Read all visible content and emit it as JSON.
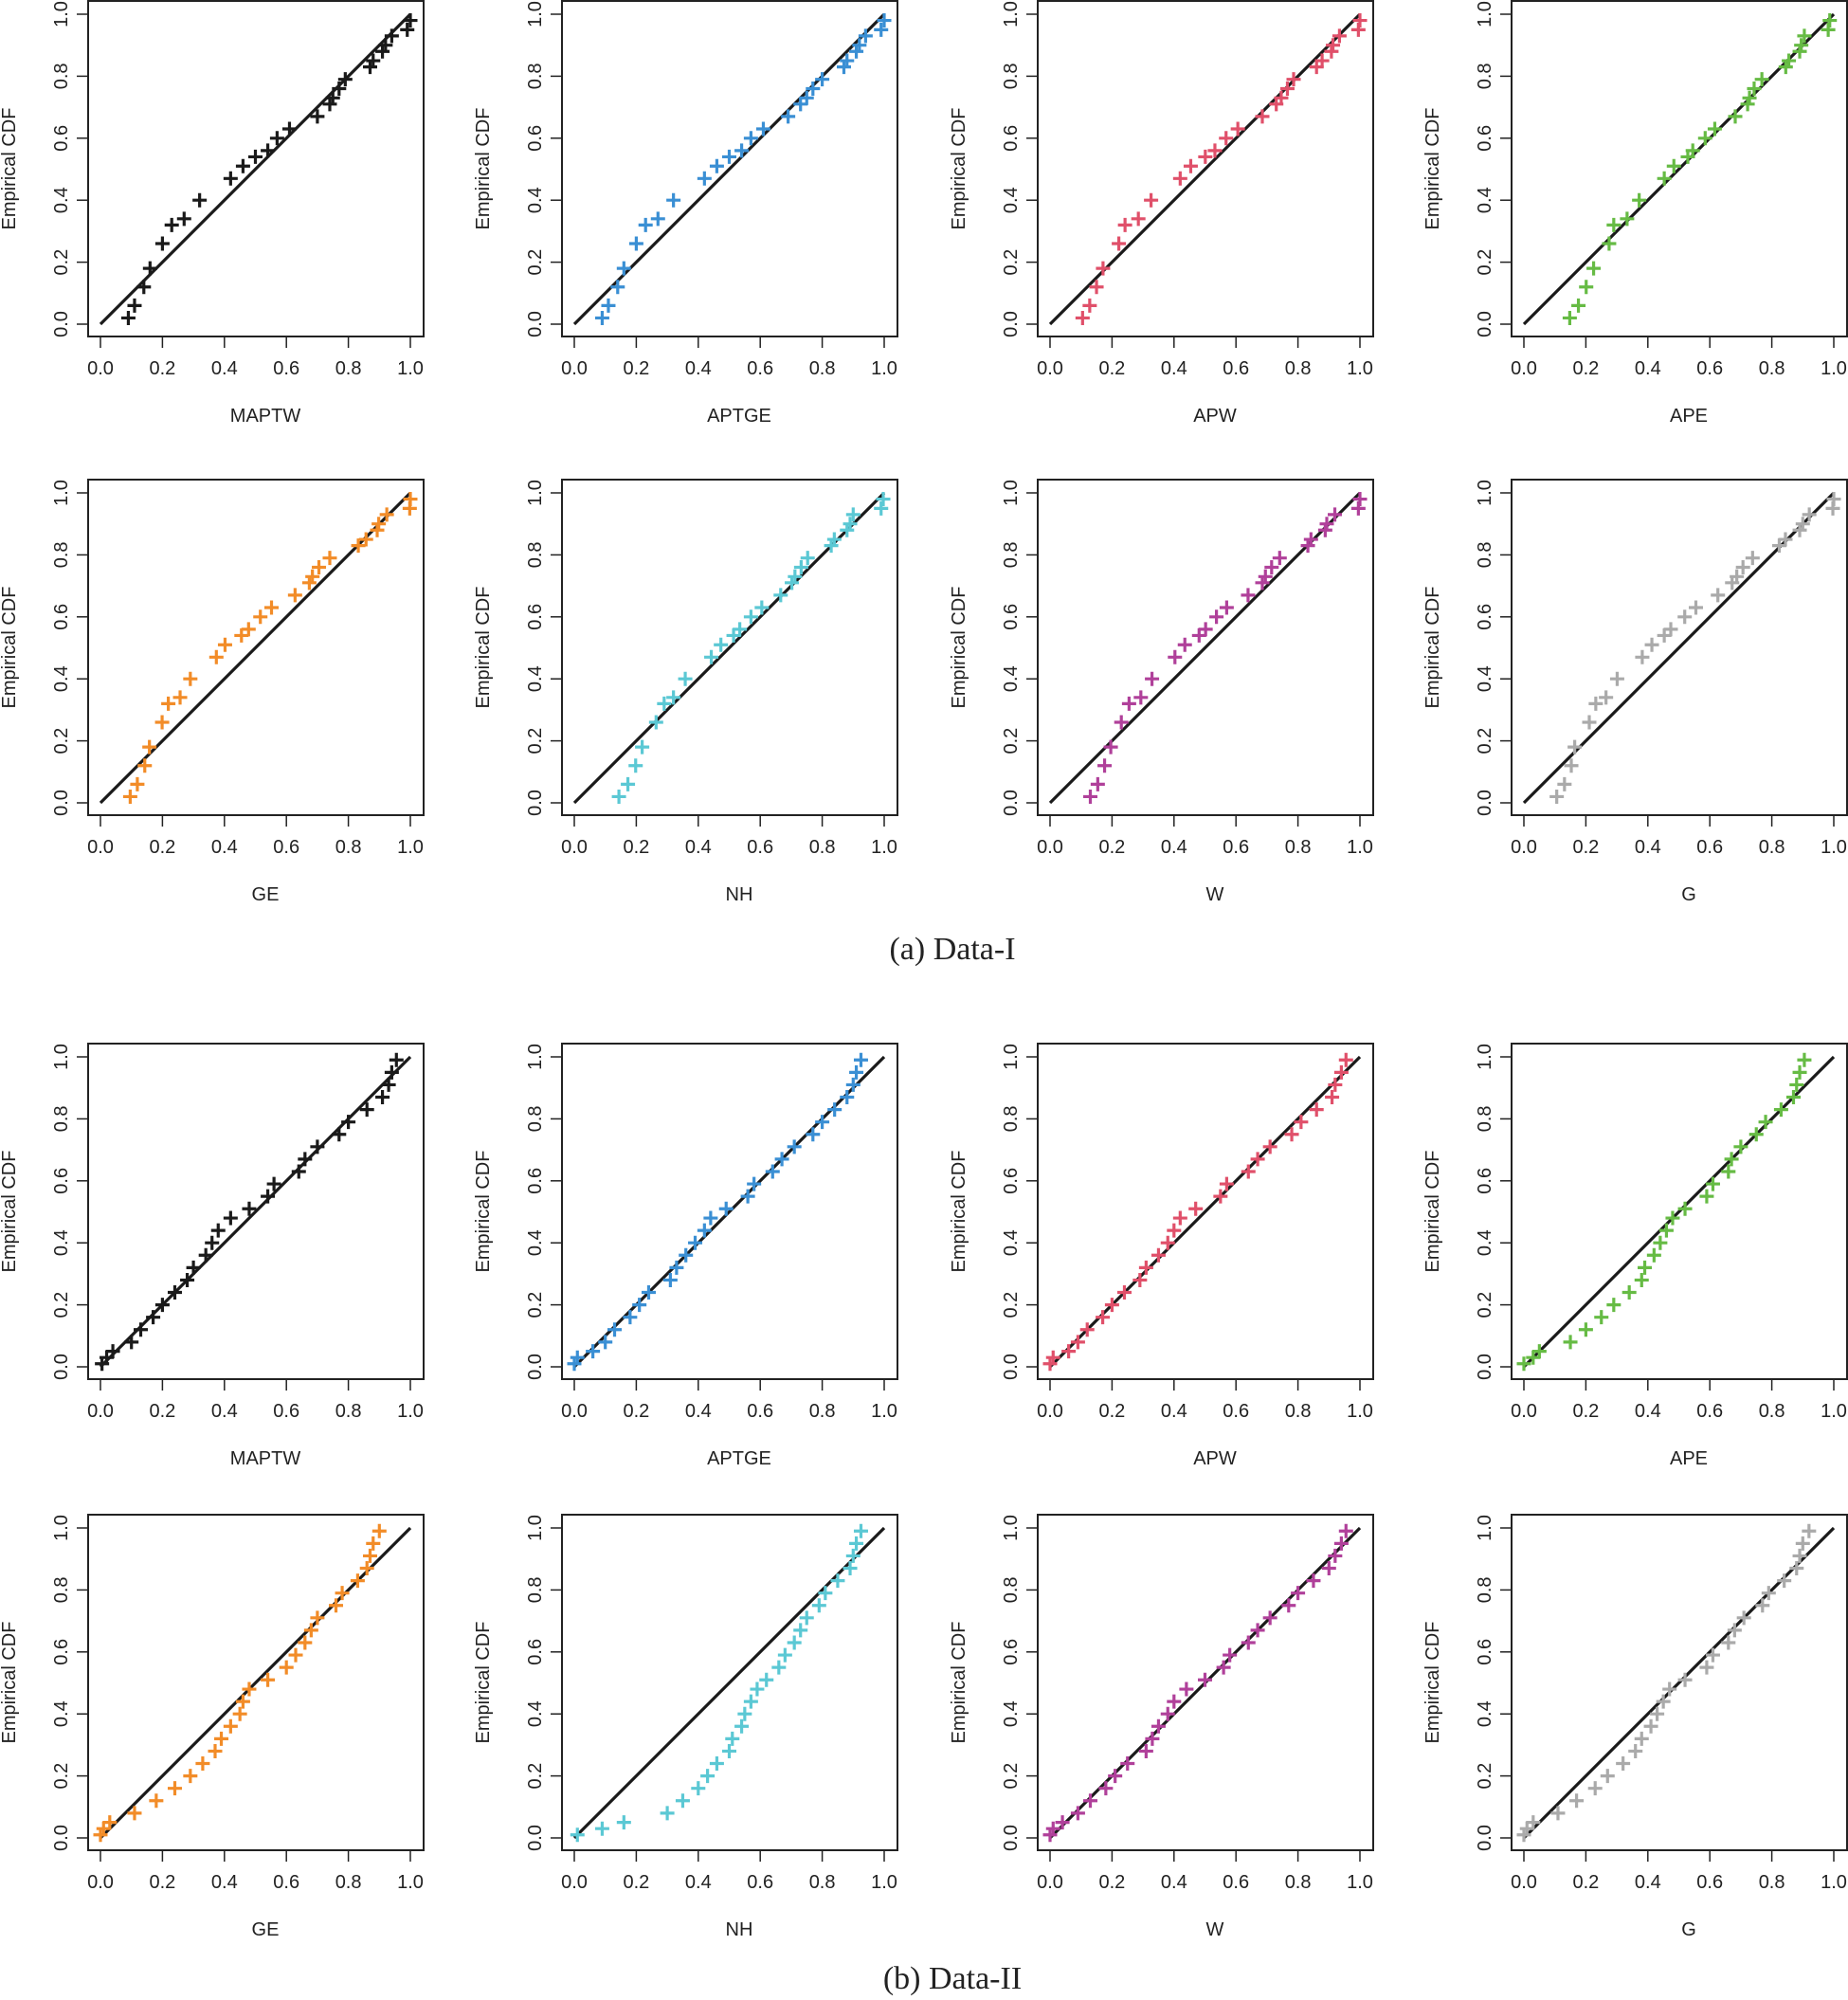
{
  "captions": [
    "(a) Data-I",
    "(b) Data-II"
  ],
  "chart_data": [
    {
      "group": "(a) Data-I",
      "type": "scatter",
      "marker": "plus",
      "xlabel": "MAPTW",
      "ylabel": "Empirical CDF",
      "xlim": [
        0,
        1
      ],
      "ylim": [
        0,
        1
      ],
      "ticks": [
        "0.0",
        "0.2",
        "0.4",
        "0.6",
        "0.8",
        "1.0"
      ],
      "diagonal_reference_line": true,
      "color": "#1a1a1a",
      "x": [
        0.09,
        0.11,
        0.14,
        0.16,
        0.2,
        0.23,
        0.27,
        0.32,
        0.42,
        0.46,
        0.5,
        0.54,
        0.57,
        0.61,
        0.7,
        0.74,
        0.75,
        0.77,
        0.79,
        0.87,
        0.88,
        0.91,
        0.92,
        0.94,
        0.99,
        1.0
      ],
      "y": [
        0.02,
        0.06,
        0.12,
        0.18,
        0.26,
        0.32,
        0.34,
        0.4,
        0.47,
        0.51,
        0.54,
        0.56,
        0.6,
        0.63,
        0.67,
        0.71,
        0.73,
        0.76,
        0.79,
        0.83,
        0.85,
        0.88,
        0.9,
        0.93,
        0.95,
        0.98
      ]
    },
    {
      "group": "(a) Data-I",
      "type": "scatter",
      "marker": "plus",
      "xlabel": "APTGE",
      "ylabel": "Empirical CDF",
      "xlim": [
        0,
        1
      ],
      "ylim": [
        0,
        1
      ],
      "ticks": [
        "0.0",
        "0.2",
        "0.4",
        "0.6",
        "0.8",
        "1.0"
      ],
      "diagonal_reference_line": true,
      "color": "#3a8fd4",
      "x": [
        0.09,
        0.11,
        0.14,
        0.16,
        0.2,
        0.23,
        0.27,
        0.32,
        0.42,
        0.46,
        0.5,
        0.54,
        0.57,
        0.61,
        0.69,
        0.73,
        0.75,
        0.77,
        0.8,
        0.87,
        0.88,
        0.91,
        0.92,
        0.94,
        0.99,
        1.0
      ],
      "y": [
        0.02,
        0.06,
        0.12,
        0.18,
        0.26,
        0.32,
        0.34,
        0.4,
        0.47,
        0.51,
        0.54,
        0.56,
        0.6,
        0.63,
        0.67,
        0.71,
        0.73,
        0.76,
        0.79,
        0.83,
        0.85,
        0.88,
        0.9,
        0.93,
        0.95,
        0.98
      ]
    },
    {
      "group": "(a) Data-I",
      "type": "scatter",
      "marker": "plus",
      "xlabel": "APW",
      "ylabel": "Empirical CDF",
      "xlim": [
        0,
        1
      ],
      "ylim": [
        0,
        1
      ],
      "ticks": [
        "0.0",
        "0.2",
        "0.4",
        "0.6",
        "0.8",
        "1.0"
      ],
      "diagonal_reference_line": true,
      "color": "#e0506a",
      "x": [
        0.105,
        0.128,
        0.15,
        0.171,
        0.222,
        0.242,
        0.285,
        0.326,
        0.42,
        0.454,
        0.501,
        0.532,
        0.568,
        0.606,
        0.685,
        0.73,
        0.746,
        0.766,
        0.786,
        0.86,
        0.878,
        0.908,
        0.913,
        0.934,
        0.995,
        1.0
      ],
      "y": [
        0.02,
        0.06,
        0.12,
        0.18,
        0.26,
        0.32,
        0.34,
        0.4,
        0.47,
        0.51,
        0.54,
        0.56,
        0.6,
        0.63,
        0.67,
        0.71,
        0.73,
        0.76,
        0.79,
        0.83,
        0.85,
        0.88,
        0.9,
        0.93,
        0.95,
        0.98
      ]
    },
    {
      "group": "(a) Data-I",
      "type": "scatter",
      "marker": "plus",
      "xlabel": "APE",
      "ylabel": "Empirical CDF",
      "xlim": [
        0,
        1
      ],
      "ylim": [
        0,
        1
      ],
      "ticks": [
        "0.0",
        "0.2",
        "0.4",
        "0.6",
        "0.8",
        "1.0"
      ],
      "diagonal_reference_line": true,
      "color": "#66bb44",
      "x": [
        0.148,
        0.176,
        0.201,
        0.225,
        0.275,
        0.29,
        0.333,
        0.372,
        0.453,
        0.484,
        0.529,
        0.545,
        0.585,
        0.616,
        0.682,
        0.722,
        0.728,
        0.743,
        0.768,
        0.845,
        0.855,
        0.89,
        0.895,
        0.905,
        0.982,
        0.987
      ],
      "y": [
        0.02,
        0.06,
        0.12,
        0.18,
        0.26,
        0.32,
        0.34,
        0.4,
        0.47,
        0.51,
        0.54,
        0.56,
        0.6,
        0.63,
        0.67,
        0.71,
        0.73,
        0.76,
        0.79,
        0.83,
        0.85,
        0.88,
        0.9,
        0.93,
        0.95,
        0.98
      ]
    },
    {
      "group": "(a) Data-I",
      "type": "scatter",
      "marker": "plus",
      "xlabel": "GE",
      "ylabel": "Empirical CDF",
      "xlim": [
        0,
        1
      ],
      "ylim": [
        0,
        1
      ],
      "ticks": [
        "0.0",
        "0.2",
        "0.4",
        "0.6",
        "0.8",
        "1.0"
      ],
      "diagonal_reference_line": true,
      "color": "#f28c28",
      "x": [
        0.096,
        0.119,
        0.143,
        0.158,
        0.199,
        0.219,
        0.257,
        0.29,
        0.374,
        0.402,
        0.455,
        0.478,
        0.516,
        0.552,
        0.628,
        0.674,
        0.684,
        0.705,
        0.74,
        0.832,
        0.857,
        0.893,
        0.898,
        0.924,
        0.998,
        1.0
      ],
      "y": [
        0.02,
        0.06,
        0.12,
        0.18,
        0.26,
        0.32,
        0.34,
        0.4,
        0.47,
        0.51,
        0.54,
        0.56,
        0.6,
        0.63,
        0.67,
        0.71,
        0.73,
        0.76,
        0.79,
        0.83,
        0.85,
        0.88,
        0.9,
        0.93,
        0.95,
        0.98
      ]
    },
    {
      "group": "(a) Data-I",
      "type": "scatter",
      "marker": "plus",
      "xlabel": "NH",
      "ylabel": "Empirical CDF",
      "xlim": [
        0,
        1
      ],
      "ylim": [
        0,
        1
      ],
      "ticks": [
        "0.0",
        "0.2",
        "0.4",
        "0.6",
        "0.8",
        "1.0"
      ],
      "diagonal_reference_line": true,
      "color": "#5bc8d4",
      "x": [
        0.144,
        0.173,
        0.198,
        0.219,
        0.264,
        0.29,
        0.32,
        0.358,
        0.442,
        0.473,
        0.514,
        0.534,
        0.57,
        0.605,
        0.666,
        0.702,
        0.712,
        0.732,
        0.753,
        0.829,
        0.839,
        0.88,
        0.89,
        0.9,
        0.99,
        0.997
      ],
      "y": [
        0.02,
        0.06,
        0.12,
        0.18,
        0.26,
        0.32,
        0.34,
        0.4,
        0.47,
        0.51,
        0.54,
        0.56,
        0.6,
        0.63,
        0.67,
        0.71,
        0.73,
        0.76,
        0.79,
        0.83,
        0.85,
        0.88,
        0.9,
        0.93,
        0.95,
        0.98
      ]
    },
    {
      "group": "(a) Data-I",
      "type": "scatter",
      "marker": "plus",
      "xlabel": "W",
      "ylabel": "Empirical CDF",
      "xlim": [
        0,
        1
      ],
      "ylim": [
        0,
        1
      ],
      "ticks": [
        "0.0",
        "0.2",
        "0.4",
        "0.6",
        "0.8",
        "1.0"
      ],
      "diagonal_reference_line": true,
      "color": "#b0409a",
      "x": [
        0.13,
        0.154,
        0.176,
        0.196,
        0.23,
        0.255,
        0.293,
        0.329,
        0.403,
        0.435,
        0.481,
        0.502,
        0.537,
        0.57,
        0.639,
        0.685,
        0.695,
        0.715,
        0.741,
        0.832,
        0.842,
        0.888,
        0.893,
        0.919,
        0.995,
        1.0
      ],
      "y": [
        0.02,
        0.06,
        0.12,
        0.18,
        0.26,
        0.32,
        0.34,
        0.4,
        0.47,
        0.51,
        0.54,
        0.56,
        0.6,
        0.63,
        0.67,
        0.71,
        0.73,
        0.76,
        0.79,
        0.83,
        0.85,
        0.88,
        0.9,
        0.93,
        0.95,
        0.98
      ]
    },
    {
      "group": "(a) Data-I",
      "type": "scatter",
      "marker": "plus",
      "xlabel": "G",
      "ylabel": "Empirical CDF",
      "xlim": [
        0,
        1
      ],
      "ylim": [
        0,
        1
      ],
      "ticks": [
        "0.0",
        "0.2",
        "0.4",
        "0.6",
        "0.8",
        "1.0"
      ],
      "diagonal_reference_line": true,
      "color": "#aaaaaa",
      "x": [
        0.106,
        0.131,
        0.153,
        0.164,
        0.211,
        0.232,
        0.265,
        0.301,
        0.382,
        0.413,
        0.453,
        0.474,
        0.519,
        0.555,
        0.626,
        0.672,
        0.687,
        0.707,
        0.738,
        0.824,
        0.844,
        0.89,
        0.9,
        0.921,
        0.997,
        1.0
      ],
      "y": [
        0.02,
        0.06,
        0.12,
        0.18,
        0.26,
        0.32,
        0.34,
        0.4,
        0.47,
        0.51,
        0.54,
        0.56,
        0.6,
        0.63,
        0.67,
        0.71,
        0.73,
        0.76,
        0.79,
        0.83,
        0.85,
        0.88,
        0.9,
        0.93,
        0.95,
        0.98
      ]
    },
    {
      "group": "(b) Data-II",
      "type": "scatter",
      "marker": "plus",
      "xlabel": "MAPTW",
      "ylabel": "Empirical CDF",
      "xlim": [
        0,
        1
      ],
      "ylim": [
        0,
        1
      ],
      "ticks": [
        "0.0",
        "0.2",
        "0.4",
        "0.6",
        "0.8",
        "1.0"
      ],
      "diagonal_reference_line": true,
      "color": "#1a1a1a",
      "x": [
        0.005,
        0.02,
        0.04,
        0.1,
        0.13,
        0.17,
        0.2,
        0.24,
        0.28,
        0.3,
        0.34,
        0.36,
        0.38,
        0.42,
        0.48,
        0.54,
        0.56,
        0.64,
        0.66,
        0.7,
        0.77,
        0.8,
        0.86,
        0.91,
        0.93,
        0.94,
        0.955
      ],
      "y": [
        0.01,
        0.03,
        0.05,
        0.08,
        0.12,
        0.16,
        0.2,
        0.24,
        0.28,
        0.32,
        0.36,
        0.4,
        0.44,
        0.48,
        0.51,
        0.55,
        0.59,
        0.63,
        0.67,
        0.71,
        0.75,
        0.79,
        0.83,
        0.87,
        0.91,
        0.95,
        0.99
      ]
    },
    {
      "group": "(b) Data-II",
      "type": "scatter",
      "marker": "plus",
      "xlabel": "APTGE",
      "ylabel": "Empirical CDF",
      "xlim": [
        0,
        1
      ],
      "ylim": [
        0,
        1
      ],
      "ticks": [
        "0.0",
        "0.2",
        "0.4",
        "0.6",
        "0.8",
        "1.0"
      ],
      "diagonal_reference_line": true,
      "color": "#3a8fd4",
      "x": [
        0.0,
        0.01,
        0.06,
        0.1,
        0.13,
        0.18,
        0.21,
        0.24,
        0.31,
        0.33,
        0.36,
        0.39,
        0.42,
        0.44,
        0.49,
        0.56,
        0.58,
        0.64,
        0.67,
        0.71,
        0.77,
        0.8,
        0.84,
        0.88,
        0.9,
        0.91,
        0.925
      ],
      "y": [
        0.01,
        0.03,
        0.05,
        0.08,
        0.12,
        0.16,
        0.2,
        0.24,
        0.28,
        0.32,
        0.36,
        0.4,
        0.44,
        0.48,
        0.51,
        0.55,
        0.59,
        0.63,
        0.67,
        0.71,
        0.75,
        0.79,
        0.83,
        0.87,
        0.91,
        0.95,
        0.99
      ]
    },
    {
      "group": "(b) Data-II",
      "type": "scatter",
      "marker": "plus",
      "xlabel": "APW",
      "ylabel": "Empirical CDF",
      "xlim": [
        0,
        1
      ],
      "ylim": [
        0,
        1
      ],
      "ticks": [
        "0.0",
        "0.2",
        "0.4",
        "0.6",
        "0.8",
        "1.0"
      ],
      "diagonal_reference_line": true,
      "color": "#e0506a",
      "x": [
        0.0,
        0.01,
        0.06,
        0.09,
        0.12,
        0.17,
        0.2,
        0.24,
        0.29,
        0.31,
        0.35,
        0.38,
        0.4,
        0.42,
        0.47,
        0.55,
        0.57,
        0.64,
        0.67,
        0.71,
        0.78,
        0.81,
        0.86,
        0.91,
        0.92,
        0.94,
        0.955
      ],
      "y": [
        0.01,
        0.03,
        0.05,
        0.08,
        0.12,
        0.16,
        0.2,
        0.24,
        0.28,
        0.32,
        0.36,
        0.4,
        0.44,
        0.48,
        0.51,
        0.55,
        0.59,
        0.63,
        0.67,
        0.71,
        0.75,
        0.79,
        0.83,
        0.87,
        0.91,
        0.95,
        0.99
      ]
    },
    {
      "group": "(b) Data-II",
      "type": "scatter",
      "marker": "plus",
      "xlabel": "APE",
      "ylabel": "Empirical CDF",
      "xlim": [
        0,
        1
      ],
      "ylim": [
        0,
        1
      ],
      "ticks": [
        "0.0",
        "0.2",
        "0.4",
        "0.6",
        "0.8",
        "1.0"
      ],
      "diagonal_reference_line": true,
      "color": "#66bb44",
      "x": [
        0.0,
        0.03,
        0.05,
        0.15,
        0.2,
        0.25,
        0.29,
        0.34,
        0.38,
        0.39,
        0.42,
        0.44,
        0.46,
        0.48,
        0.52,
        0.59,
        0.61,
        0.66,
        0.67,
        0.7,
        0.75,
        0.78,
        0.83,
        0.87,
        0.88,
        0.89,
        0.905
      ],
      "y": [
        0.01,
        0.03,
        0.05,
        0.08,
        0.12,
        0.16,
        0.2,
        0.24,
        0.28,
        0.32,
        0.36,
        0.4,
        0.44,
        0.48,
        0.51,
        0.55,
        0.59,
        0.63,
        0.67,
        0.71,
        0.75,
        0.79,
        0.83,
        0.87,
        0.91,
        0.95,
        0.99
      ]
    },
    {
      "group": "(b) Data-II",
      "type": "scatter",
      "marker": "plus",
      "xlabel": "GE",
      "ylabel": "Empirical CDF",
      "xlim": [
        0,
        1
      ],
      "ylim": [
        0,
        1
      ],
      "ticks": [
        "0.0",
        "0.2",
        "0.4",
        "0.6",
        "0.8",
        "1.0"
      ],
      "diagonal_reference_line": true,
      "color": "#f28c28",
      "x": [
        0.0,
        0.01,
        0.03,
        0.11,
        0.18,
        0.24,
        0.29,
        0.33,
        0.37,
        0.39,
        0.42,
        0.45,
        0.46,
        0.48,
        0.54,
        0.6,
        0.63,
        0.66,
        0.68,
        0.7,
        0.76,
        0.78,
        0.83,
        0.86,
        0.87,
        0.88,
        0.9
      ],
      "y": [
        0.01,
        0.03,
        0.05,
        0.08,
        0.12,
        0.16,
        0.2,
        0.24,
        0.28,
        0.32,
        0.36,
        0.4,
        0.44,
        0.48,
        0.51,
        0.55,
        0.59,
        0.63,
        0.67,
        0.71,
        0.75,
        0.79,
        0.83,
        0.87,
        0.91,
        0.95,
        0.99
      ]
    },
    {
      "group": "(b) Data-II",
      "type": "scatter",
      "marker": "plus",
      "xlabel": "NH",
      "ylabel": "Empirical CDF",
      "xlim": [
        0,
        1
      ],
      "ylim": [
        0,
        1
      ],
      "ticks": [
        "0.0",
        "0.2",
        "0.4",
        "0.6",
        "0.8",
        "1.0"
      ],
      "diagonal_reference_line": true,
      "color": "#5bc8d4",
      "x": [
        0.01,
        0.09,
        0.16,
        0.3,
        0.35,
        0.4,
        0.43,
        0.46,
        0.5,
        0.51,
        0.54,
        0.55,
        0.57,
        0.59,
        0.62,
        0.66,
        0.68,
        0.71,
        0.73,
        0.75,
        0.79,
        0.81,
        0.85,
        0.89,
        0.9,
        0.91,
        0.925
      ],
      "y": [
        0.01,
        0.03,
        0.05,
        0.08,
        0.12,
        0.16,
        0.2,
        0.24,
        0.28,
        0.32,
        0.36,
        0.4,
        0.44,
        0.48,
        0.51,
        0.55,
        0.59,
        0.63,
        0.67,
        0.71,
        0.75,
        0.79,
        0.83,
        0.87,
        0.91,
        0.95,
        0.99
      ]
    },
    {
      "group": "(b) Data-II",
      "type": "scatter",
      "marker": "plus",
      "xlabel": "W",
      "ylabel": "Empirical CDF",
      "xlim": [
        0,
        1
      ],
      "ylim": [
        0,
        1
      ],
      "ticks": [
        "0.0",
        "0.2",
        "0.4",
        "0.6",
        "0.8",
        "1.0"
      ],
      "diagonal_reference_line": true,
      "color": "#b0409a",
      "x": [
        0.0,
        0.01,
        0.04,
        0.09,
        0.13,
        0.18,
        0.21,
        0.25,
        0.31,
        0.33,
        0.35,
        0.38,
        0.4,
        0.44,
        0.5,
        0.56,
        0.58,
        0.64,
        0.67,
        0.71,
        0.77,
        0.8,
        0.85,
        0.9,
        0.92,
        0.94,
        0.955
      ],
      "y": [
        0.01,
        0.03,
        0.05,
        0.08,
        0.12,
        0.16,
        0.2,
        0.24,
        0.28,
        0.32,
        0.36,
        0.4,
        0.44,
        0.48,
        0.51,
        0.55,
        0.59,
        0.63,
        0.67,
        0.71,
        0.75,
        0.79,
        0.83,
        0.87,
        0.91,
        0.95,
        0.99
      ]
    },
    {
      "group": "(b) Data-II",
      "type": "scatter",
      "marker": "plus",
      "xlabel": "G",
      "ylabel": "Empirical CDF",
      "xlim": [
        0,
        1
      ],
      "ylim": [
        0,
        1
      ],
      "ticks": [
        "0.0",
        "0.2",
        "0.4",
        "0.6",
        "0.8",
        "1.0"
      ],
      "diagonal_reference_line": true,
      "color": "#aaaaaa",
      "x": [
        0.0,
        0.01,
        0.03,
        0.11,
        0.17,
        0.23,
        0.27,
        0.32,
        0.36,
        0.38,
        0.41,
        0.43,
        0.45,
        0.47,
        0.52,
        0.59,
        0.61,
        0.66,
        0.68,
        0.71,
        0.77,
        0.79,
        0.84,
        0.88,
        0.89,
        0.9,
        0.92
      ],
      "y": [
        0.01,
        0.03,
        0.05,
        0.08,
        0.12,
        0.16,
        0.2,
        0.24,
        0.28,
        0.32,
        0.36,
        0.4,
        0.44,
        0.48,
        0.51,
        0.55,
        0.59,
        0.63,
        0.67,
        0.71,
        0.75,
        0.79,
        0.83,
        0.87,
        0.91,
        0.95,
        0.99
      ]
    }
  ]
}
